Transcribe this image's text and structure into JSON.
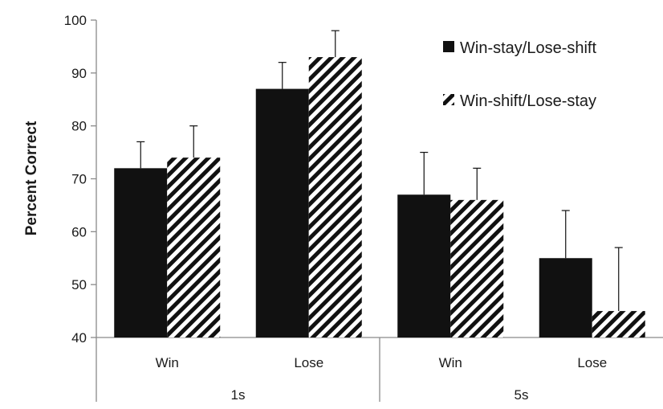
{
  "chart_data": {
    "type": "bar",
    "ylabel": "Percent Correct",
    "ylim": [
      40,
      100
    ],
    "yticks": [
      40,
      50,
      60,
      70,
      80,
      90,
      100
    ],
    "categories": [
      "Win",
      "Lose",
      "Win",
      "Lose"
    ],
    "groups": [
      {
        "label": "1s",
        "categories": [
          "Win",
          "Lose"
        ]
      },
      {
        "label": "5s",
        "categories": [
          "Win",
          "Lose"
        ]
      }
    ],
    "series": [
      {
        "name": "Win-stay/Lose-shift",
        "fill": "solid",
        "color": "#111111",
        "values": [
          72,
          87,
          67,
          55
        ],
        "errors": [
          5,
          5,
          8,
          9
        ]
      },
      {
        "name": "Win-shift/Lose-stay",
        "fill": "diagonal-hatch",
        "color": "#111111",
        "values": [
          74,
          93,
          66,
          45
        ],
        "errors": [
          6,
          5,
          6,
          12
        ]
      }
    ],
    "legend": "top-right",
    "grid": false
  }
}
